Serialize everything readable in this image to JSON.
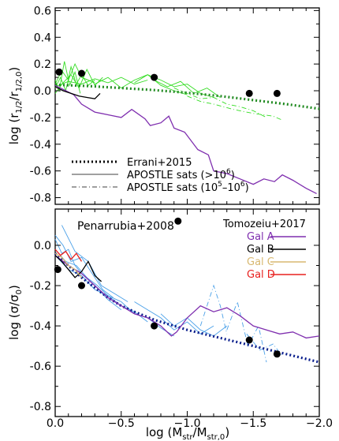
{
  "chart_data": [
    {
      "type": "line",
      "panel": "top",
      "ylabel_main": "log (r",
      "ylabel_sub1": "1/2",
      "ylabel_mid": "/r",
      "ylabel_sub2": "1/2,0",
      "ylabel_end": ")",
      "xlim": [
        0.0,
        -2.0
      ],
      "ylim": [
        -0.85,
        0.62
      ],
      "y_ticks": [
        "0.6",
        "0.4",
        "0.2",
        "0.0",
        "-0.2",
        "-0.4",
        "-0.6",
        "-0.8"
      ],
      "y_tick_values": [
        0.6,
        0.4,
        0.2,
        0.0,
        -0.2,
        -0.4,
        -0.6,
        -0.8
      ],
      "grid": false,
      "legend": [
        {
          "label": "Errani+2015",
          "style": "dotted-thick",
          "color": "#000000"
        },
        {
          "label_main": "APOSTLE sats (>10",
          "label_sup": "6",
          "label_end": ")",
          "style": "solid-thin",
          "color": "#000000"
        },
        {
          "label_main": "APOSTLE sats (10",
          "label_sup1": "5",
          "label_mid": "–10",
          "label_sup2": "6",
          "label_end": ")",
          "style": "dash-dot-thin",
          "color": "#000000"
        }
      ],
      "legend_position": "bottom-left",
      "series": [
        {
          "style": "dotted",
          "color": "#228B22",
          "x": [
            0.0,
            -0.25,
            -0.5,
            -0.75,
            -1.0,
            -1.25,
            -1.5,
            -1.75,
            -2.0
          ],
          "y": [
            0.045,
            0.035,
            0.02,
            0.005,
            -0.015,
            -0.04,
            -0.07,
            -0.1,
            -0.135
          ]
        },
        {
          "style": "solid",
          "color": "#7F2FAF",
          "x": [
            0.0,
            -0.08,
            -0.14,
            -0.2,
            -0.3,
            -0.4,
            -0.5,
            -0.58,
            -0.68,
            -0.72,
            -0.8,
            -0.86,
            -0.9,
            -0.98,
            -1.08,
            -1.16,
            -1.2,
            -1.3,
            -1.4,
            -1.5,
            -1.58,
            -1.66,
            -1.72,
            -1.8,
            -1.9,
            -1.98
          ],
          "y": [
            0.04,
            0.0,
            -0.03,
            -0.1,
            -0.16,
            -0.18,
            -0.2,
            -0.14,
            -0.21,
            -0.26,
            -0.24,
            -0.19,
            -0.28,
            -0.31,
            -0.44,
            -0.48,
            -0.6,
            -0.62,
            -0.66,
            -0.7,
            -0.66,
            -0.68,
            -0.63,
            -0.67,
            -0.73,
            -0.77
          ]
        },
        {
          "style": "solid",
          "color": "#000000",
          "x": [
            0.0,
            -0.06,
            -0.12,
            -0.18,
            -0.24,
            -0.3,
            -0.34
          ],
          "y": [
            0.03,
            0.0,
            -0.02,
            -0.04,
            -0.05,
            -0.06,
            -0.02
          ]
        }
      ],
      "apostle_green": [
        {
          "x": [
            0.0,
            -0.05,
            -0.1,
            -0.15,
            -0.2,
            -0.3
          ],
          "y": [
            0.05,
            0.15,
            0.08,
            0.2,
            0.1,
            0.06
          ]
        },
        {
          "x": [
            0.0,
            -0.04,
            -0.08,
            -0.12,
            -0.16,
            -0.2,
            -0.25,
            -0.3
          ],
          "y": [
            0.02,
            0.1,
            0.0,
            0.18,
            0.05,
            0.12,
            0.04,
            0.08
          ]
        },
        {
          "x": [
            0.0,
            -0.06,
            -0.12,
            -0.18,
            -0.24,
            -0.3,
            -0.36
          ],
          "y": [
            -0.02,
            0.06,
            0.12,
            0.02,
            0.16,
            0.04,
            0.1
          ]
        },
        {
          "x": [
            0.0,
            -0.03,
            -0.07,
            -0.11,
            -0.15,
            -0.19
          ],
          "y": [
            0.08,
            0.0,
            0.22,
            0.04,
            0.14,
            -0.02
          ]
        },
        {
          "x": [
            0.0,
            -0.1,
            -0.2,
            -0.3,
            -0.4,
            -0.5,
            -0.6,
            -0.7
          ],
          "y": [
            0.03,
            0.07,
            0.05,
            0.09,
            0.06,
            0.1,
            0.05,
            0.08
          ]
        },
        {
          "x": [
            -0.3,
            -0.4,
            -0.5,
            -0.6,
            -0.7,
            -0.8,
            -0.9,
            -1.0
          ],
          "y": [
            0.05,
            0.1,
            0.02,
            0.08,
            0.12,
            0.04,
            0.0,
            -0.03
          ]
        },
        {
          "x": [
            -0.6,
            -0.7,
            -0.8,
            -0.9,
            -1.0,
            -1.1,
            -1.2
          ],
          "y": [
            0.06,
            0.12,
            0.08,
            0.03,
            0.05,
            -0.02,
            -0.05
          ]
        },
        {
          "x": [
            -0.75,
            -0.85,
            -0.95,
            -1.05,
            -1.15,
            -1.25
          ],
          "y": [
            0.08,
            0.03,
            0.07,
            -0.02,
            0.02,
            -0.05
          ]
        }
      ],
      "apostle_green_dashdot": [
        {
          "x": [
            -0.9,
            -1.0,
            -1.1,
            -1.2,
            -1.3,
            -1.4,
            -1.5,
            -1.6
          ],
          "y": [
            0.02,
            -0.02,
            -0.06,
            -0.05,
            -0.1,
            -0.12,
            -0.15,
            -0.2
          ]
        },
        {
          "x": [
            -1.0,
            -1.1,
            -1.2,
            -1.35,
            -1.5,
            -1.65,
            -1.72
          ],
          "y": [
            -0.04,
            -0.08,
            -0.1,
            -0.14,
            -0.17,
            -0.19,
            -0.22
          ]
        }
      ],
      "points": [
        {
          "x": -0.03,
          "y": 0.14
        },
        {
          "x": -0.2,
          "y": 0.13
        },
        {
          "x": -0.75,
          "y": 0.1
        },
        {
          "x": -1.47,
          "y": -0.02
        },
        {
          "x": -1.68,
          "y": -0.02
        }
      ]
    },
    {
      "type": "line",
      "panel": "bottom",
      "xlabel_main": "log (M",
      "xlabel_sub1": "str",
      "xlabel_mid": "/M",
      "xlabel_sub2": "str,0",
      "xlabel_end": ")",
      "ylabel_main": "log (σ/σ",
      "ylabel_sub": "0",
      "ylabel_end": ")",
      "annotation": "Penarrubia+2008",
      "annotation_point": {
        "x": -0.93,
        "y": 0.12
      },
      "xlim": [
        0.0,
        -2.0
      ],
      "ylim": [
        -0.85,
        0.18
      ],
      "x_ticks": [
        "0.0",
        "−0.5",
        "−1.0",
        "−1.5",
        "−2.0"
      ],
      "x_tick_values": [
        0.0,
        -0.5,
        -1.0,
        -1.5,
        -2.0
      ],
      "y_ticks": [
        "0.0",
        "-0.2",
        "-0.4",
        "-0.6",
        "-0.8"
      ],
      "y_tick_values": [
        0.0,
        -0.2,
        -0.4,
        -0.6,
        -0.8
      ],
      "grid": false,
      "legend_title": "Tomozeiu+2017",
      "legend_position": "top-right",
      "legend": [
        {
          "label": "Gal A",
          "color": "#7F2FAF"
        },
        {
          "label": "Gal B",
          "color": "#000000"
        },
        {
          "label": "Gal C",
          "color": "#D8B870"
        },
        {
          "label": "Gal D",
          "color": "#E8201E"
        }
      ],
      "series": [
        {
          "style": "dotted",
          "color": "#0A1E8C",
          "x": [
            0.0,
            -0.1,
            -0.2,
            -0.3,
            -0.4,
            -0.5,
            -0.6,
            -0.75,
            -1.0,
            -1.25,
            -1.5,
            -1.75,
            -2.0
          ],
          "y": [
            -0.04,
            -0.1,
            -0.16,
            -0.21,
            -0.26,
            -0.3,
            -0.33,
            -0.37,
            -0.42,
            -0.46,
            -0.5,
            -0.54,
            -0.58
          ]
        },
        {
          "style": "solid",
          "color": "#7F2FAF",
          "x": [
            0.0,
            -0.1,
            -0.2,
            -0.3,
            -0.4,
            -0.5,
            -0.6,
            -0.7,
            -0.8,
            -0.88,
            -0.92,
            -1.0,
            -1.1,
            -1.2,
            -1.3,
            -1.4,
            -1.5,
            -1.6,
            -1.7,
            -1.8,
            -1.9,
            -2.0
          ],
          "y": [
            -0.05,
            -0.1,
            -0.14,
            -0.2,
            -0.26,
            -0.3,
            -0.34,
            -0.36,
            -0.4,
            -0.45,
            -0.43,
            -0.36,
            -0.3,
            -0.33,
            -0.31,
            -0.35,
            -0.4,
            -0.42,
            -0.44,
            -0.43,
            -0.46,
            -0.45
          ]
        },
        {
          "style": "solid",
          "color": "#000000",
          "x": [
            0.0,
            -0.05,
            -0.1,
            -0.15,
            -0.2,
            -0.25,
            -0.3,
            -0.35
          ],
          "y": [
            -0.05,
            -0.08,
            -0.12,
            -0.16,
            -0.13,
            -0.08,
            -0.15,
            -0.18
          ]
        },
        {
          "style": "solid",
          "color": "#D8B870",
          "x": [
            0.0,
            -0.05,
            -0.1,
            -0.15,
            -0.2
          ],
          "y": [
            -0.04,
            -0.06,
            -0.1,
            -0.12,
            -0.16
          ]
        },
        {
          "style": "solid",
          "color": "#E8201E",
          "x": [
            0.0,
            -0.04,
            -0.08,
            -0.12,
            -0.16,
            -0.2
          ],
          "y": [
            -0.02,
            -0.05,
            -0.03,
            -0.07,
            -0.04,
            -0.08
          ]
        }
      ],
      "apostle_blue": [
        {
          "x": [
            0.0,
            -0.05,
            -0.1,
            -0.15,
            -0.2,
            -0.3,
            -0.4,
            -0.5
          ],
          "y": [
            0.03,
            -0.04,
            -0.02,
            -0.1,
            -0.14,
            -0.2,
            -0.27,
            -0.32
          ]
        },
        {
          "x": [
            0.0,
            -0.08,
            -0.16,
            -0.24,
            -0.32,
            -0.4,
            -0.5,
            -0.6,
            -0.7
          ],
          "y": [
            -0.02,
            -0.08,
            -0.1,
            -0.16,
            -0.2,
            -0.25,
            -0.3,
            -0.33,
            -0.38
          ]
        },
        {
          "x": [
            0.0,
            -0.06,
            -0.12,
            -0.2,
            -0.28,
            -0.36,
            -0.44
          ],
          "y": [
            0.05,
            0.0,
            -0.08,
            -0.06,
            -0.14,
            -0.22,
            -0.26
          ]
        },
        {
          "x": [
            0.0,
            -0.1,
            -0.2,
            -0.3,
            -0.4,
            -0.5,
            -0.6,
            -0.7,
            -0.8,
            -0.9
          ],
          "y": [
            -0.05,
            -0.12,
            -0.15,
            -0.22,
            -0.25,
            -0.28,
            -0.34,
            -0.36,
            -0.41,
            -0.45
          ]
        },
        {
          "x": [
            -0.05,
            -0.15,
            -0.25,
            -0.35,
            -0.45,
            -0.55
          ],
          "y": [
            0.1,
            -0.03,
            -0.08,
            -0.2,
            -0.24,
            -0.28
          ]
        },
        {
          "x": [
            -0.6,
            -0.7,
            -0.8,
            -0.9,
            -1.0,
            -1.1,
            -1.2
          ],
          "y": [
            -0.28,
            -0.32,
            -0.36,
            -0.42,
            -0.38,
            -0.44,
            -0.4
          ]
        },
        {
          "x": [
            -0.8,
            -0.9,
            -1.0,
            -1.1,
            -1.2,
            -1.3
          ],
          "y": [
            -0.34,
            -0.4,
            -0.36,
            -0.42,
            -0.45,
            -0.4
          ]
        }
      ],
      "apostle_blue_dashdot": [
        {
          "x": [
            -1.1,
            -1.15,
            -1.2,
            -1.25,
            -1.3
          ],
          "y": [
            -0.4,
            -0.3,
            -0.2,
            -0.3,
            -0.44
          ]
        },
        {
          "x": [
            -1.3,
            -1.38,
            -1.46,
            -1.54,
            -1.6
          ],
          "y": [
            -0.42,
            -0.28,
            -0.5,
            -0.4,
            -0.58
          ]
        },
        {
          "x": [
            -1.45,
            -1.55,
            -1.65,
            -1.72
          ],
          "y": [
            -0.44,
            -0.52,
            -0.49,
            -0.55
          ]
        }
      ],
      "points": [
        {
          "x": -0.02,
          "y": -0.12
        },
        {
          "x": -0.2,
          "y": -0.2
        },
        {
          "x": -0.75,
          "y": -0.4
        },
        {
          "x": -1.47,
          "y": -0.47
        },
        {
          "x": -1.68,
          "y": -0.54
        },
        {
          "x": -0.93,
          "y": 0.12
        }
      ]
    }
  ]
}
